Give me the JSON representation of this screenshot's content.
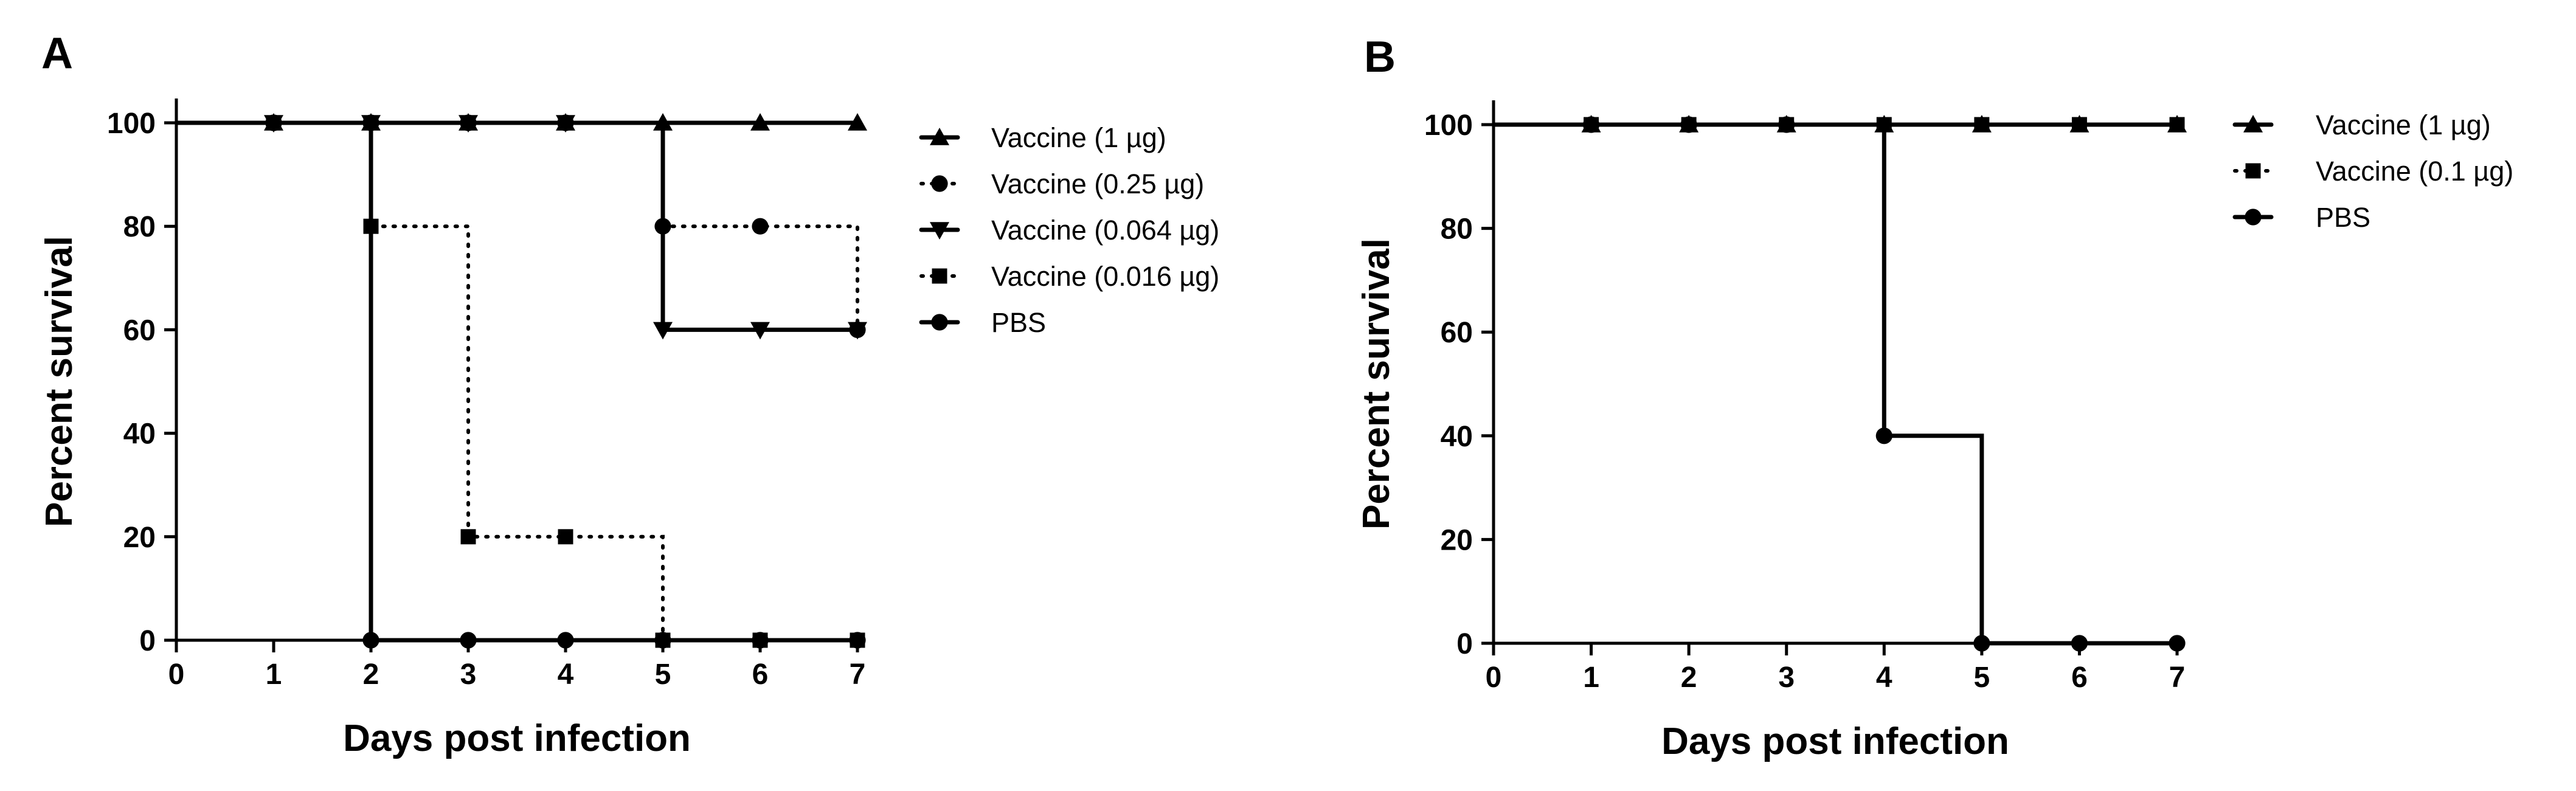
{
  "chart_data": [
    {
      "type": "line",
      "panel_label": "A",
      "xlabel": "Days post infection",
      "ylabel": "Percent survival",
      "xlim": [
        0,
        7
      ],
      "ylim": [
        0,
        100
      ],
      "xticks": [
        0,
        1,
        2,
        3,
        4,
        5,
        6,
        7
      ],
      "yticks": [
        0,
        20,
        40,
        60,
        80,
        100
      ],
      "grid": false,
      "legend_position": "right",
      "series": [
        {
          "name": "Vaccine (1 µg)",
          "marker": "triangle-up",
          "line_style": "solid",
          "x": [
            0,
            1,
            2,
            3,
            4,
            5,
            6,
            7
          ],
          "y": [
            100,
            100,
            100,
            100,
            100,
            100,
            100,
            100
          ]
        },
        {
          "name": "Vaccine (0.25 µg)",
          "marker": "circle",
          "line_style": "dotted",
          "x": [
            0,
            1,
            2,
            3,
            4,
            5,
            6,
            7
          ],
          "y": [
            100,
            100,
            100,
            100,
            100,
            80,
            80,
            60
          ]
        },
        {
          "name": "Vaccine (0.064 µg)",
          "marker": "triangle-down",
          "line_style": "solid",
          "x": [
            0,
            1,
            2,
            3,
            4,
            5,
            6,
            7
          ],
          "y": [
            100,
            100,
            100,
            100,
            100,
            60,
            60,
            60
          ]
        },
        {
          "name": "Vaccine (0.016 µg)",
          "marker": "square",
          "line_style": "dotted",
          "x": [
            0,
            1,
            2,
            3,
            4,
            5,
            6,
            7
          ],
          "y": [
            100,
            100,
            80,
            20,
            20,
            0,
            0,
            0
          ]
        },
        {
          "name": "PBS",
          "marker": "circle",
          "line_style": "solid",
          "x": [
            0,
            1,
            2,
            3,
            4,
            5,
            6,
            7
          ],
          "y": [
            100,
            100,
            0,
            0,
            0,
            0,
            0,
            0
          ]
        }
      ]
    },
    {
      "type": "line",
      "panel_label": "B",
      "xlabel": "Days post infection",
      "ylabel": "Percent survival",
      "xlim": [
        0,
        7
      ],
      "ylim": [
        0,
        100
      ],
      "xticks": [
        0,
        1,
        2,
        3,
        4,
        5,
        6,
        7
      ],
      "yticks": [
        0,
        20,
        40,
        60,
        80,
        100
      ],
      "grid": false,
      "legend_position": "right",
      "series": [
        {
          "name": "Vaccine (1 µg)",
          "marker": "triangle-up",
          "line_style": "solid",
          "x": [
            0,
            1,
            2,
            3,
            4,
            5,
            6,
            7
          ],
          "y": [
            100,
            100,
            100,
            100,
            100,
            100,
            100,
            100
          ]
        },
        {
          "name": "Vaccine (0.1 µg)",
          "marker": "square",
          "line_style": "dotted",
          "x": [
            0,
            1,
            2,
            3,
            4,
            5,
            6,
            7
          ],
          "y": [
            100,
            100,
            100,
            100,
            100,
            100,
            100,
            100
          ]
        },
        {
          "name": "PBS",
          "marker": "circle",
          "line_style": "solid",
          "x": [
            0,
            1,
            2,
            3,
            4,
            5,
            6,
            7
          ],
          "y": [
            100,
            100,
            100,
            100,
            40,
            0,
            0,
            0
          ]
        }
      ]
    }
  ]
}
